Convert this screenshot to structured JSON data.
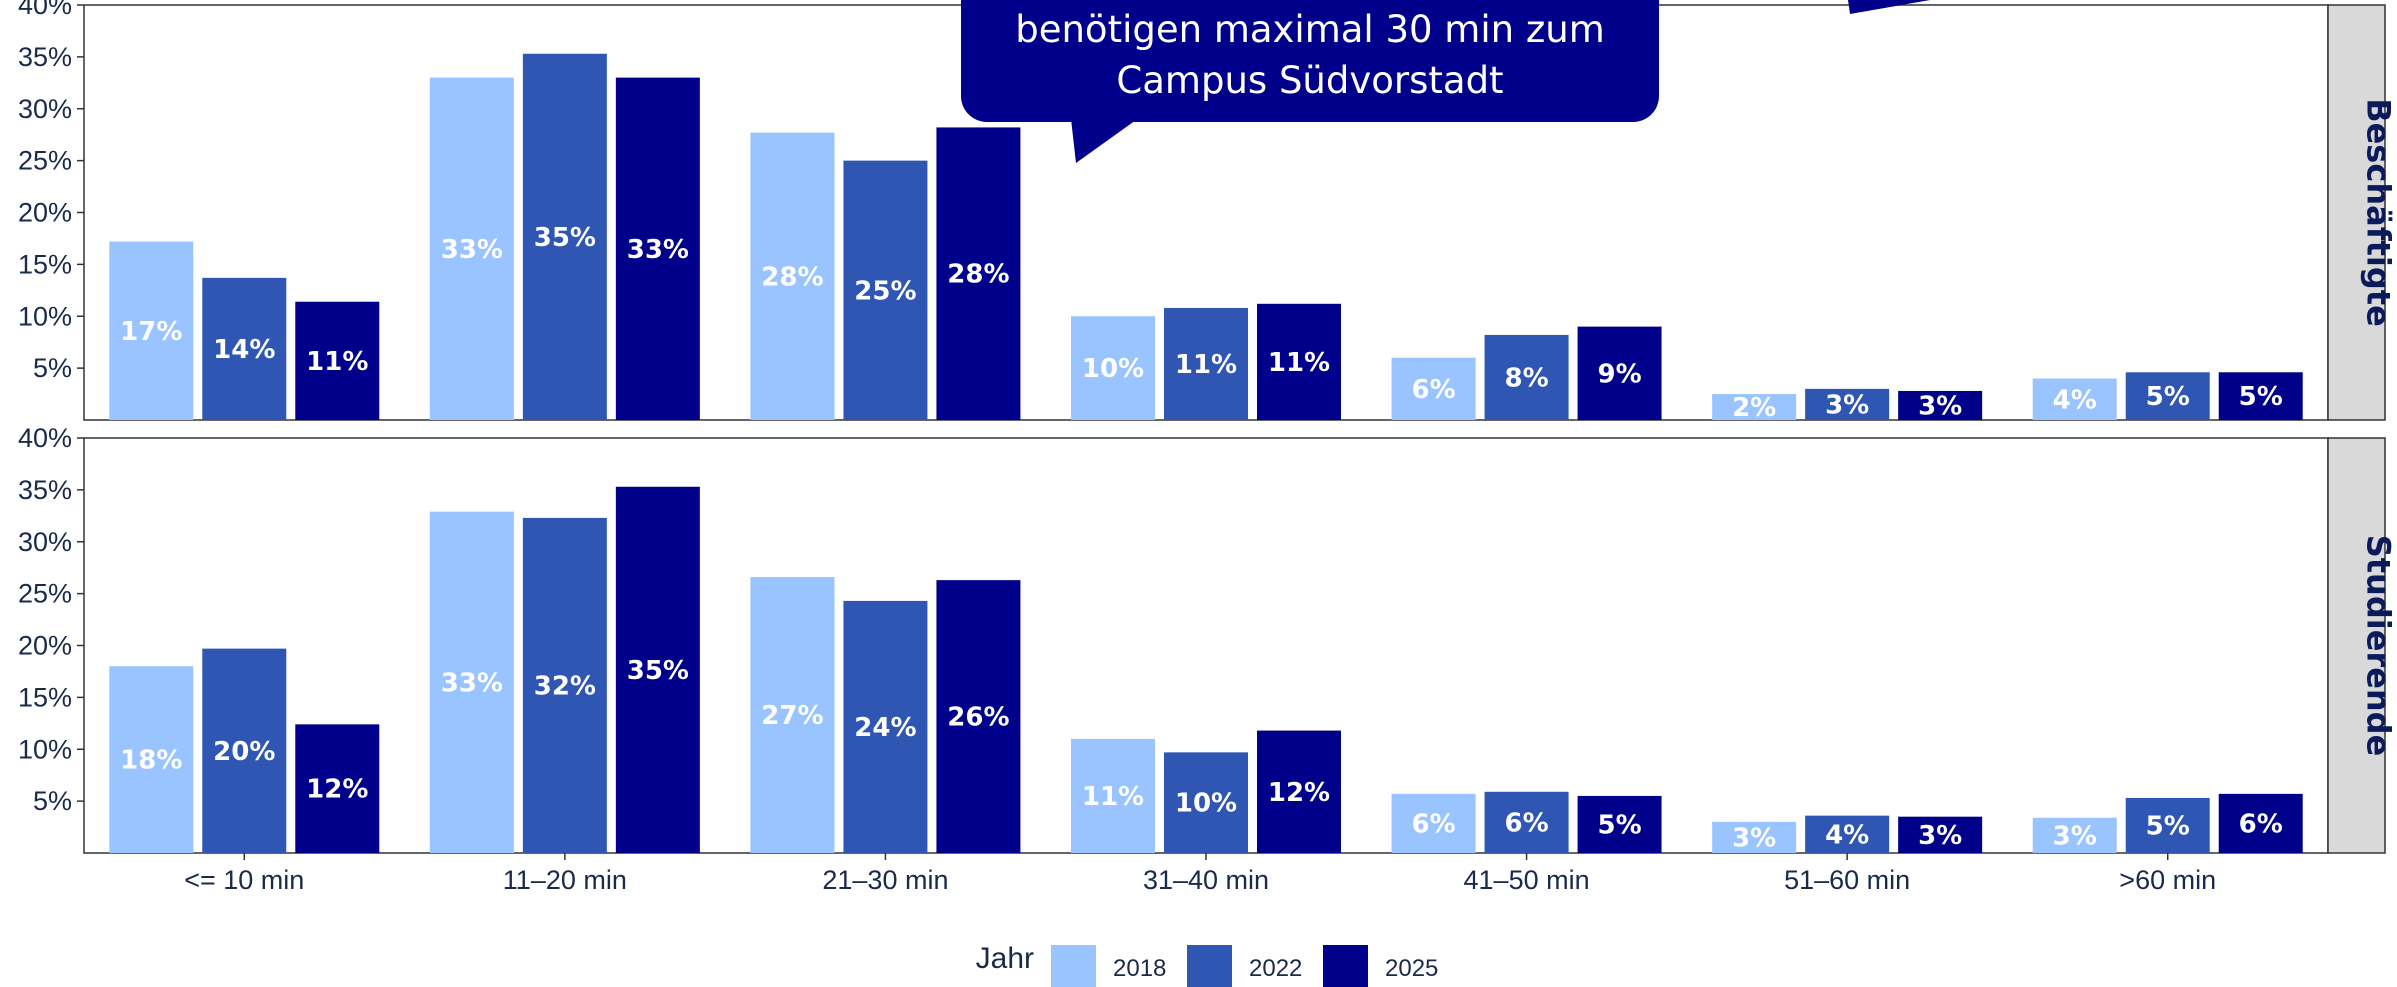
{
  "chart_data": {
    "type": "bar",
    "categories": [
      "<= 10 min",
      "11–20 min",
      "21–30 min",
      "31–40 min",
      "41–50 min",
      "51–60 min",
      ">60 min"
    ],
    "yticks": [
      "5%",
      "10%",
      "15%",
      "20%",
      "25%",
      "30%",
      "35%",
      "40%"
    ],
    "ylim": [
      0,
      40
    ],
    "legend": {
      "title": "Jahr",
      "position": "bottom",
      "items": [
        "2018",
        "2022",
        "2025"
      ]
    },
    "colors": [
      "#99c4ff",
      "#2e56b2",
      "#00008b"
    ],
    "label_colors": [
      "#ffffff",
      "#ffffff",
      "#ffffff"
    ],
    "callout": {
      "lines": [
        "benötigen maximal 30 min zum",
        "Campus Südvorstadt"
      ],
      "color": "#00008b"
    },
    "panels": [
      {
        "strip": "Beschäftigte",
        "series": [
          {
            "name": "2018",
            "values": [
              17.2,
              33.0,
              27.7,
              10.0,
              6.0,
              2.5,
              4.0
            ],
            "labels": [
              "17%",
              "33%",
              "28%",
              "10%",
              "6%",
              "2%",
              "4%"
            ]
          },
          {
            "name": "2022",
            "values": [
              13.7,
              35.3,
              25.0,
              10.8,
              8.2,
              3.0,
              4.6
            ],
            "labels": [
              "14%",
              "35%",
              "25%",
              "11%",
              "8%",
              "3%",
              "5%"
            ]
          },
          {
            "name": "2025",
            "values": [
              11.4,
              33.0,
              28.2,
              11.2,
              9.0,
              2.8,
              4.6
            ],
            "labels": [
              "11%",
              "33%",
              "28%",
              "11%",
              "9%",
              "3%",
              "5%"
            ]
          }
        ]
      },
      {
        "strip": "Studierende",
        "series": [
          {
            "name": "2018",
            "values": [
              18.0,
              32.9,
              26.6,
              11.0,
              5.7,
              3.0,
              3.4
            ],
            "labels": [
              "18%",
              "33%",
              "27%",
              "11%",
              "6%",
              "3%",
              "3%"
            ]
          },
          {
            "name": "2022",
            "values": [
              19.7,
              32.3,
              24.3,
              9.7,
              5.9,
              3.6,
              5.3
            ],
            "labels": [
              "20%",
              "32%",
              "24%",
              "10%",
              "6%",
              "4%",
              "5%"
            ]
          },
          {
            "name": "2025",
            "values": [
              12.4,
              35.3,
              26.3,
              11.8,
              5.5,
              3.5,
              5.7
            ],
            "labels": [
              "12%",
              "35%",
              "26%",
              "12%",
              "5%",
              "3%",
              "6%"
            ]
          }
        ]
      }
    ]
  }
}
